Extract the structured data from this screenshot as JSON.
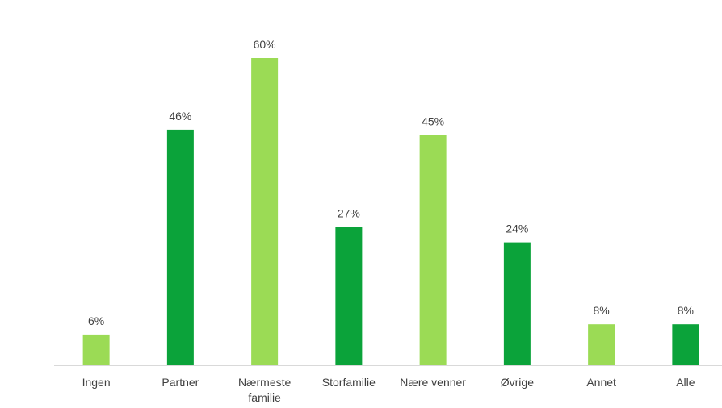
{
  "chart_data": {
    "type": "bar",
    "categories": [
      "Ingen",
      "Partner",
      "Nærmeste familie",
      "Storfamilie",
      "Nære venner",
      "Øvrige",
      "Annet",
      "Alle"
    ],
    "values": [
      6,
      46,
      60,
      27,
      45,
      24,
      8,
      8
    ],
    "value_labels": [
      "6%",
      "46%",
      "60%",
      "27%",
      "45%",
      "24%",
      "8%",
      "8%"
    ],
    "colors": [
      "#9bdb55",
      "#0ba33a",
      "#9bdb55",
      "#0ba33a",
      "#9bdb55",
      "#0ba33a",
      "#9bdb55",
      "#0ba33a"
    ]
  }
}
